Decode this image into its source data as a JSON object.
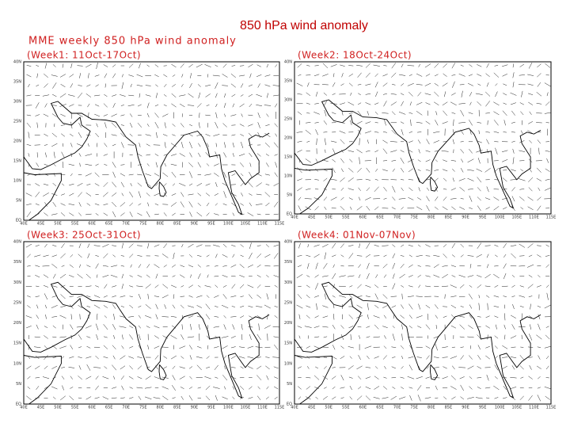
{
  "title": "850 hPa  wind anomaly",
  "subtitle": "MME weekly 850 hPa wind anomaly",
  "panels": [
    {
      "label": "(Week1: 11Oct-17Oct)"
    },
    {
      "label": "(Week2: 18Oct-24Oct)"
    },
    {
      "label": "(Week3: 25Oct-31Oct)"
    },
    {
      "label": "(Week4: 01Nov-07Nov)"
    }
  ],
  "lat_labels": [
    "40N",
    "35N",
    "30N",
    "25N",
    "20N",
    "15N",
    "10N",
    "5N",
    "EQ"
  ],
  "lon_labels": [
    "40E",
    "45E",
    "50E",
    "55E",
    "60E",
    "65E",
    "70E",
    "75E",
    "80E",
    "85E",
    "90E",
    "95E",
    "100E",
    "105E",
    "110E",
    "115E"
  ]
}
